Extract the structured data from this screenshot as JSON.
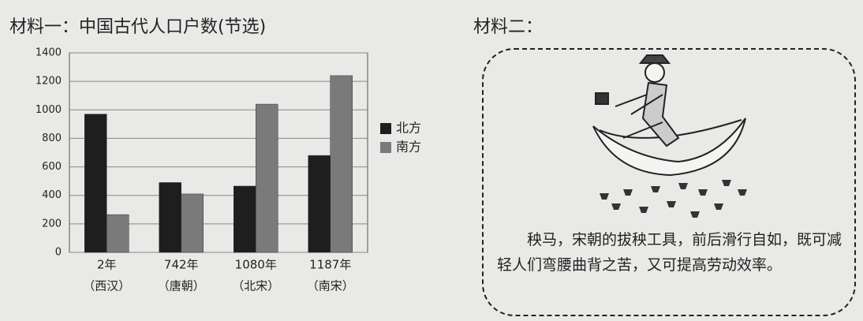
{
  "chart_data": {
    "type": "bar",
    "title": "材料一：中国古代人口户数(节选)",
    "categories": [
      "2年",
      "742年",
      "1080年",
      "1187年"
    ],
    "category_notes": [
      "（西汉）",
      "（唐朝）",
      "（北宋）",
      "（南宋）"
    ],
    "series": [
      {
        "name": "北方",
        "color": "#1e1e1e",
        "values": [
          970,
          490,
          465,
          680
        ]
      },
      {
        "name": "南方",
        "color": "#7a7a7a",
        "values": [
          265,
          410,
          1040,
          1240
        ]
      }
    ],
    "ylim": [
      0,
      1400
    ],
    "yticks": [
      0,
      200,
      400,
      600,
      800,
      1000,
      1200,
      1400
    ],
    "grid": true,
    "legend": "right"
  },
  "material2": {
    "label": "材料二：",
    "caption": "秧马，宋朝的拔秧工具，前后滑行自如，既可减轻人们弯腰曲背之苦，又可提高劳动效率。"
  }
}
